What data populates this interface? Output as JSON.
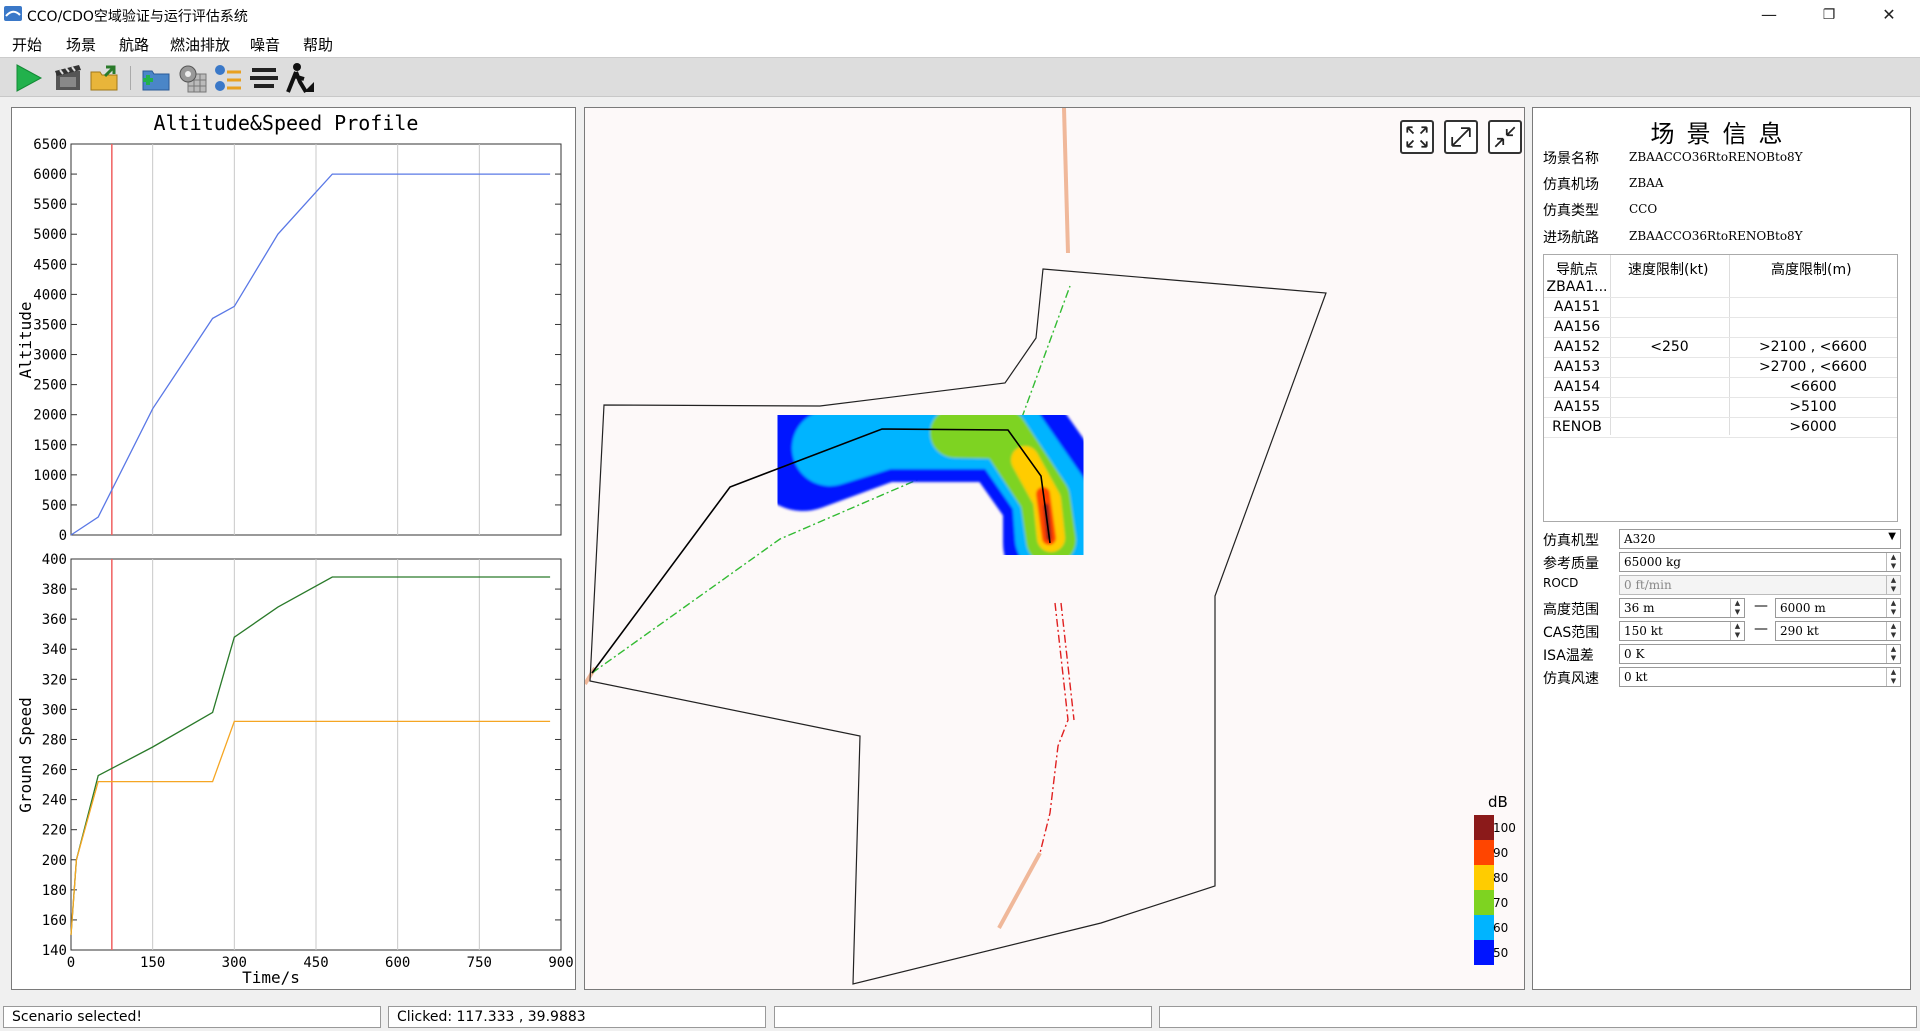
{
  "window": {
    "title": "CCO/CDO空域验证与运行评估系统",
    "minimize_glyph": "—",
    "restore_glyph": "❐",
    "close_glyph": "✕"
  },
  "menu": [
    "开始",
    "场景",
    "航路",
    "燃油排放",
    "噪音",
    "帮助"
  ],
  "toolbar": {
    "icons": [
      "play-icon",
      "film-icon",
      "folder-export-icon",
      "add-folder-icon",
      "settings-grid-icon",
      "waypoint-icon",
      "layers-icon",
      "pedestrian-icon"
    ]
  },
  "altitude_chart": {
    "title": "Altitude&Speed Profile",
    "ylabel": "Altitude",
    "y_ticks": [
      "6500",
      "6000",
      "5500",
      "5000",
      "4500",
      "4000",
      "3500",
      "3000",
      "2500",
      "2000",
      "1500",
      "1000",
      "500",
      "0"
    ]
  },
  "speed_chart": {
    "ylabel": "Ground Speed",
    "xlabel": "Time/s",
    "y_ticks": [
      "400",
      "380",
      "360",
      "340",
      "320",
      "300",
      "280",
      "260",
      "240",
      "220",
      "200",
      "180",
      "160",
      "140"
    ],
    "x_ticks": [
      "0",
      "150",
      "300",
      "450",
      "600",
      "750",
      "900"
    ]
  },
  "chart_data": [
    {
      "type": "line",
      "title": "Altitude&Speed Profile",
      "xlabel": "",
      "ylabel": "Altitude",
      "xlim": [
        0,
        900
      ],
      "ylim": [
        0,
        6500
      ],
      "grid": true,
      "series": [
        {
          "color": "#5a78e6",
          "x": [
            0,
            50,
            150,
            260,
            300,
            380,
            450,
            480,
            600,
            750,
            880
          ],
          "y": [
            0,
            300,
            2100,
            3600,
            3800,
            5000,
            5700,
            6000,
            6000,
            6000,
            6000
          ]
        }
      ],
      "marker_x": 75,
      "marker_color": "#f06060"
    },
    {
      "type": "line",
      "title": "",
      "xlabel": "Time/s",
      "ylabel": "Ground Speed",
      "xlim": [
        0,
        900
      ],
      "ylim": [
        140,
        400
      ],
      "grid": true,
      "series": [
        {
          "color": "#2a7a2a",
          "x": [
            0,
            10,
            50,
            150,
            260,
            300,
            380,
            480,
            600,
            750,
            880
          ],
          "y": [
            150,
            200,
            256,
            275,
            298,
            348,
            368,
            388,
            388,
            388,
            388
          ]
        },
        {
          "color": "#f5a623",
          "x": [
            0,
            10,
            50,
            150,
            260,
            300,
            450,
            600,
            750,
            880
          ],
          "y": [
            150,
            200,
            252,
            252,
            252,
            292,
            292,
            292,
            292,
            292
          ]
        }
      ],
      "marker_x": 75,
      "marker_color": "#f06060"
    }
  ],
  "map": {
    "tool_icons": [
      "fit-extent-icon",
      "zoom-expand-icon",
      "zoom-shrink-icon"
    ],
    "legend": {
      "unit": "dB",
      "levels": [
        {
          "label": "100",
          "color": "#8b1a1a"
        },
        {
          "label": "90",
          "color": "#ff4500"
        },
        {
          "label": "80",
          "color": "#ffcc00"
        },
        {
          "label": "70",
          "color": "#7ed321"
        },
        {
          "label": "60",
          "color": "#00b4ff"
        },
        {
          "label": "50",
          "color": "#0014ff"
        }
      ]
    }
  },
  "info": {
    "title": "场景信息",
    "rows": [
      {
        "label": "场景名称",
        "value": "ZBAACCO36RtoRENOBto8Y"
      },
      {
        "label": "仿真机场",
        "value": "ZBAA"
      },
      {
        "label": "仿真类型",
        "value": "CCO"
      },
      {
        "label": "进场航路",
        "value": "ZBAACCO36RtoRENOBto8Y"
      }
    ],
    "table": {
      "headers": [
        "导航点",
        "速度限制(kt)",
        "高度限制(m)"
      ],
      "rows": [
        [
          "ZBAA1...",
          "",
          ""
        ],
        [
          "AA151",
          "",
          ""
        ],
        [
          "AA156",
          "",
          ""
        ],
        [
          "AA152",
          "<250",
          ">2100 , <6600"
        ],
        [
          "AA153",
          "",
          ">2700 , <6600"
        ],
        [
          "AA154",
          "",
          "<6600"
        ],
        [
          "AA155",
          "",
          ">5100"
        ],
        [
          "RENOB",
          "",
          ">6000"
        ]
      ]
    },
    "form": {
      "aircraft_label": "仿真机型",
      "aircraft_value": "A320",
      "mass_label": "参考质量",
      "mass_value": "65000 kg",
      "rocd_label": "ROCD",
      "rocd_value": "0 ft/min",
      "alt_label": "高度范围",
      "alt_min": "36 m",
      "alt_max": "6000 m",
      "cas_label": "CAS范围",
      "cas_min": "150 kt",
      "cas_max": "290 kt",
      "isa_label": "ISA温差",
      "isa_value": "0 K",
      "wind_label": "仿真风速",
      "wind_value": "0 kt",
      "range_sep": "—"
    }
  },
  "status": {
    "message": "Scenario selected!",
    "clicked": "Clicked: 117.333 , 39.9883",
    "cell3": "",
    "cell4": ""
  }
}
